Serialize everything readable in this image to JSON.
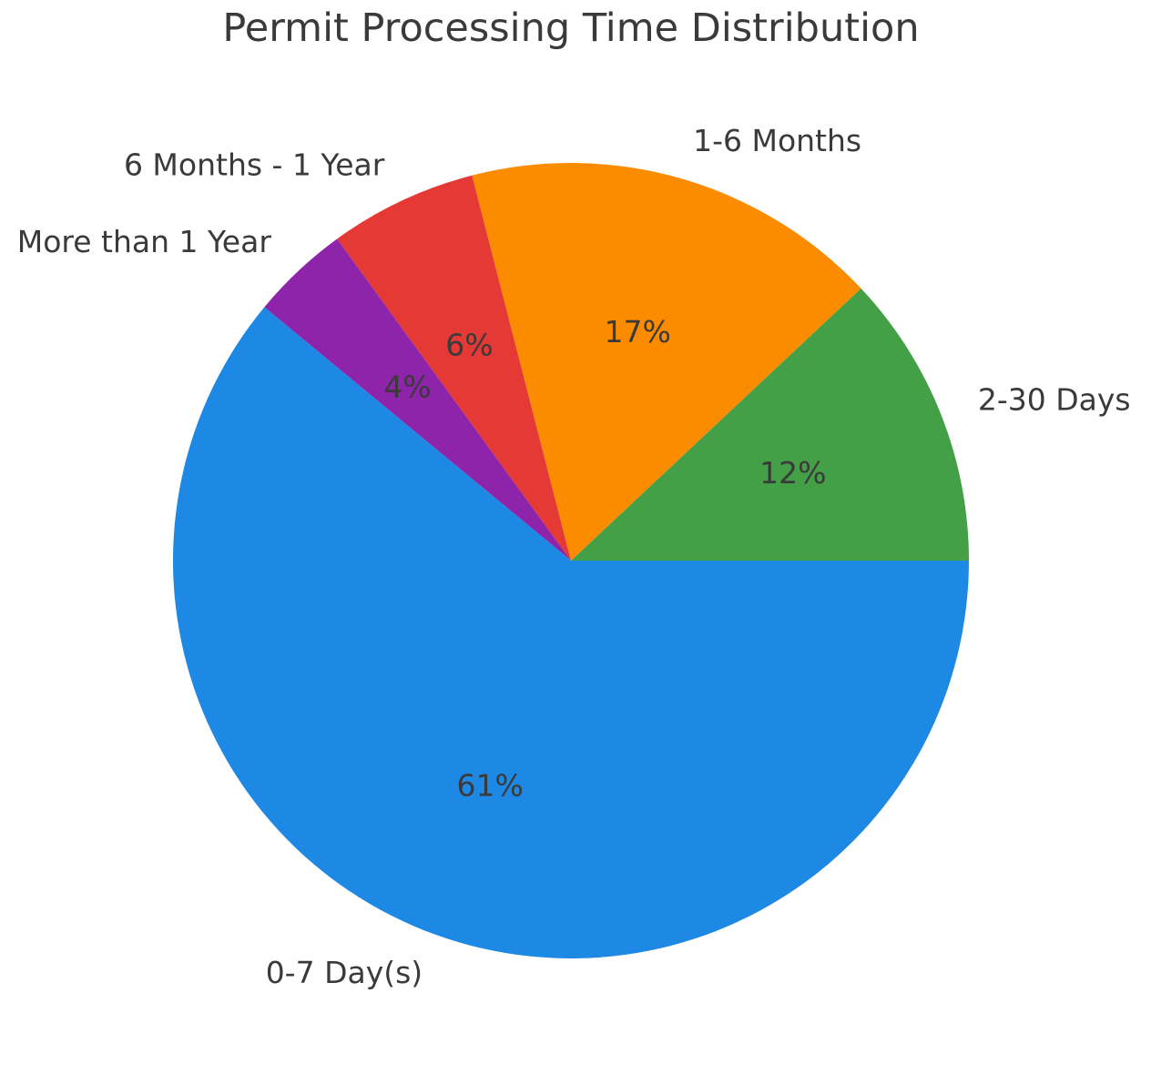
{
  "chart_data": {
    "type": "pie",
    "title": "Permit Processing Time Distribution",
    "start_angle": 0,
    "direction": "counterclockwise",
    "slices": [
      {
        "label": "2-30 Days",
        "value": 12,
        "pct_label": "12%",
        "color": "#43A047"
      },
      {
        "label": "1-6 Months",
        "value": 17,
        "pct_label": "17%",
        "color": "#FB8C00"
      },
      {
        "label": "6 Months - 1 Year",
        "value": 6,
        "pct_label": "6%",
        "color": "#E53935"
      },
      {
        "label": "More than 1 Year",
        "value": 4,
        "pct_label": "4%",
        "color": "#8E24AA"
      },
      {
        "label": "0-7 Day(s)",
        "value": 61,
        "pct_label": "61%",
        "color": "#1E88E5"
      }
    ],
    "label_distance": 1.1,
    "pct_distance": 0.6,
    "text_color": "#3a3a3a",
    "legend": "none",
    "grid": "off"
  }
}
